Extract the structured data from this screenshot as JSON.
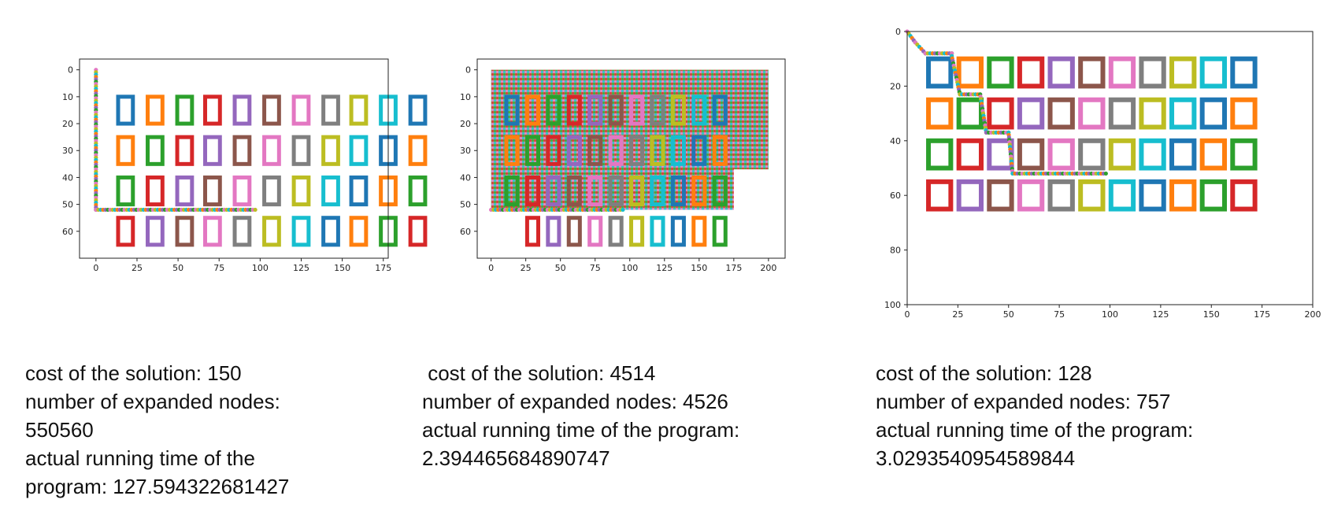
{
  "palette": [
    "#1f77b4",
    "#ff7f0e",
    "#2ca02c",
    "#d62728",
    "#9467bd",
    "#8c564b",
    "#e377c2",
    "#7f7f7f",
    "#bcbd22",
    "#17becf"
  ],
  "chart_data": [
    {
      "type": "scatter",
      "title": "",
      "xlim": [
        -10,
        178
      ],
      "ylim": [
        70,
        -4
      ],
      "xticks": [
        0,
        25,
        50,
        75,
        100,
        125,
        150,
        175
      ],
      "yticks": [
        0,
        10,
        20,
        30,
        40,
        50,
        60
      ],
      "grid": false,
      "obstacles": {
        "cols_x": [
          18,
          36,
          54,
          71,
          89,
          107,
          125,
          143,
          160,
          178,
          196
        ],
        "rows": [
          {
            "y": 15,
            "x_start": 0,
            "count": 11,
            "color_offset": 0
          },
          {
            "y": 30,
            "x_start": 0,
            "count": 11,
            "color_offset": 1
          },
          {
            "y": 45,
            "x_start": 0,
            "count": 11,
            "color_offset": 2
          },
          {
            "y": 60,
            "x_start": 0,
            "count": 11,
            "color_offset": 3
          }
        ],
        "width": 9,
        "height": 10
      },
      "path": [
        [
          0,
          0
        ],
        [
          0,
          52
        ],
        [
          97,
          52
        ]
      ]
    },
    {
      "type": "scatter",
      "title": "",
      "xlim": [
        -10,
        212
      ],
      "ylim": [
        70,
        -4
      ],
      "xticks": [
        0,
        25,
        50,
        75,
        100,
        125,
        150,
        175,
        200
      ],
      "yticks": [
        0,
        10,
        20,
        30,
        40,
        50,
        60
      ],
      "grid": false,
      "explored_region": [
        [
          0,
          0
        ],
        [
          200,
          0
        ],
        [
          200,
          37
        ],
        [
          175,
          37
        ],
        [
          175,
          52
        ],
        [
          0,
          52
        ]
      ],
      "obstacles": {
        "cols_x": [
          15,
          30,
          45,
          60,
          75,
          90,
          105,
          120,
          135,
          150,
          165
        ],
        "rows": [
          {
            "y": 15,
            "x_start": 0,
            "count": 11,
            "color_offset": 0
          },
          {
            "y": 30,
            "x_start": 0,
            "count": 11,
            "color_offset": 1
          },
          {
            "y": 45,
            "x_start": 0,
            "count": 11,
            "color_offset": 2
          },
          {
            "y": 60,
            "x_start": 1,
            "count": 10,
            "color_offset": 3
          }
        ],
        "width": 8,
        "height": 10
      },
      "path": [
        [
          0,
          52
        ],
        [
          95,
          52
        ]
      ]
    },
    {
      "type": "scatter",
      "title": "",
      "xlim": [
        0,
        200
      ],
      "ylim": [
        100,
        0
      ],
      "xticks": [
        0,
        25,
        50,
        75,
        100,
        125,
        150,
        175,
        200
      ],
      "yticks": [
        0,
        20,
        40,
        60,
        80,
        100
      ],
      "grid": false,
      "obstacles": {
        "cols_x": [
          16,
          31,
          46,
          61,
          76,
          91,
          106,
          121,
          136,
          151,
          166
        ],
        "rows": [
          {
            "y": 15,
            "x_start": 0,
            "count": 11,
            "color_offset": 0
          },
          {
            "y": 30,
            "x_start": 0,
            "count": 11,
            "color_offset": 1
          },
          {
            "y": 45,
            "x_start": 0,
            "count": 11,
            "color_offset": 2
          },
          {
            "y": 60,
            "x_start": 0,
            "count": 11,
            "color_offset": 3
          }
        ],
        "width": 11,
        "height": 10
      },
      "path": [
        [
          0,
          0
        ],
        [
          4,
          4
        ],
        [
          9,
          8
        ],
        [
          22,
          8
        ],
        [
          22,
          9
        ],
        [
          26,
          23
        ],
        [
          36,
          23
        ],
        [
          39,
          37
        ],
        [
          50,
          37
        ],
        [
          52,
          52
        ],
        [
          98,
          52
        ]
      ]
    }
  ],
  "results": [
    {
      "lines": [
        "cost of the solution: 150",
        "number of expanded nodes:",
        "550560",
        "actual running time of the",
        "program: 127.594322681427"
      ]
    },
    {
      "lines": [
        " cost of the solution: 4514",
        "number of expanded nodes: 4526",
        "actual running time of the program:",
        "2.394465684890747"
      ]
    },
    {
      "lines": [
        "cost of the solution: 128",
        "number of expanded nodes: 757",
        "actual running time of the program:",
        "3.0293540954589844"
      ]
    }
  ]
}
